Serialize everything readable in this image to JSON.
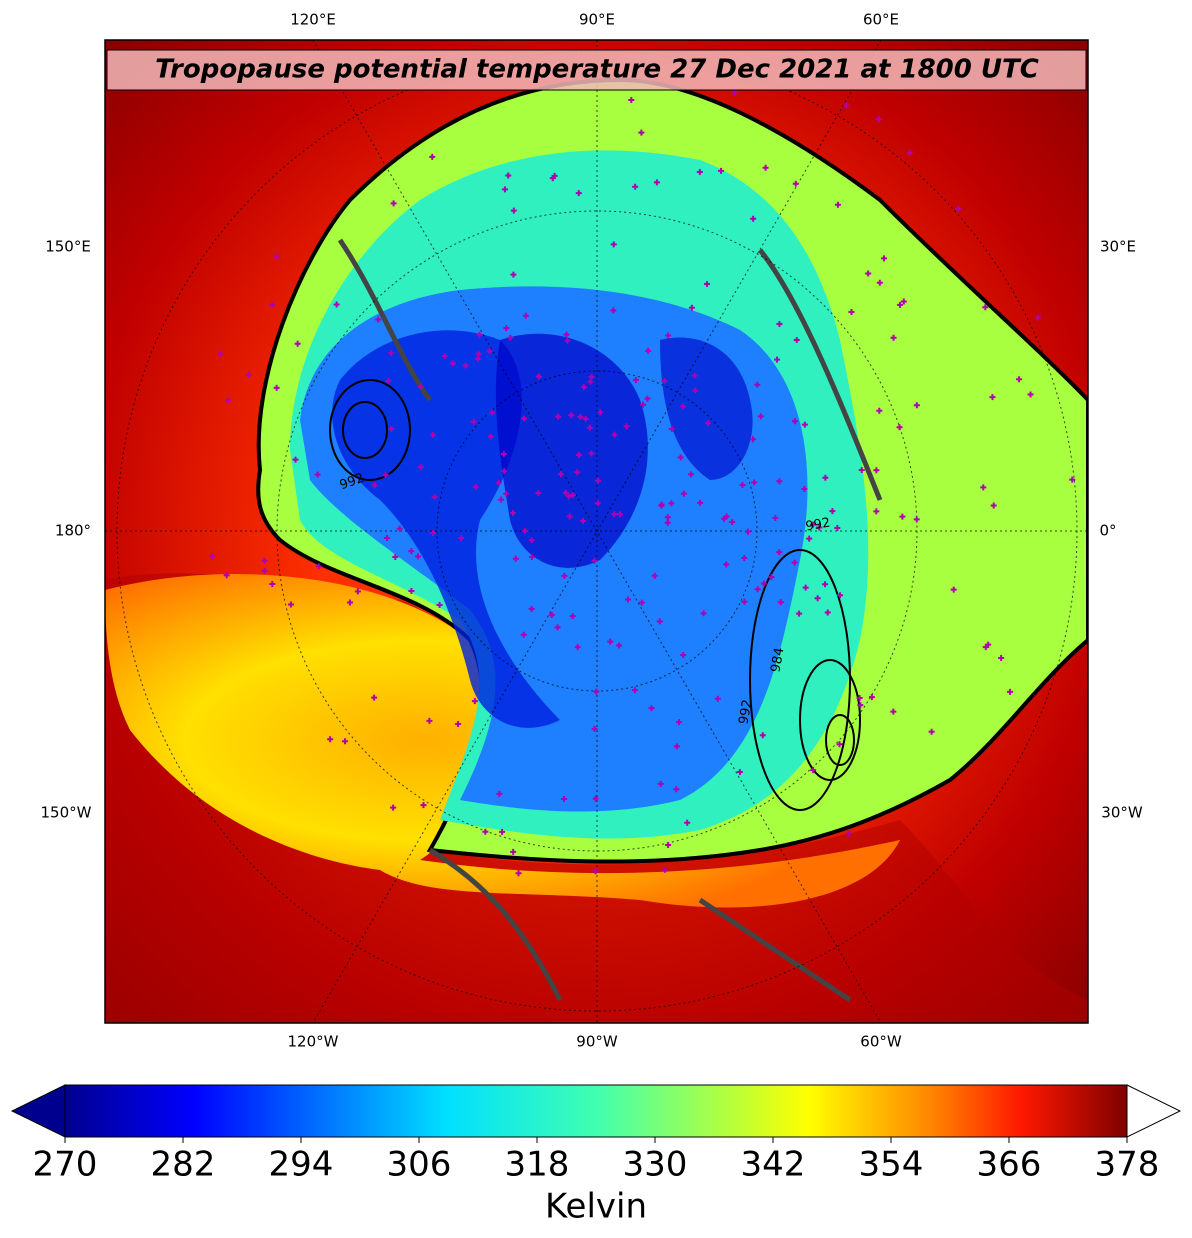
{
  "title": "Tropopause potential temperature 27 Dec 2021 at 1800 UTC",
  "map": {
    "lon_labels": {
      "top": [
        "120°E",
        "90°E",
        "60°E"
      ],
      "bottom": [
        "120°W",
        "90°W",
        "60°W"
      ],
      "left": [
        "150°E",
        "180°",
        "150°W"
      ],
      "right": [
        "30°E",
        "0°",
        "30°W"
      ]
    },
    "contour_labels": [
      "992",
      "984",
      "992",
      "992"
    ]
  },
  "colorbar": {
    "label": "Kelvin",
    "lim": [
      270,
      378
    ],
    "ticks": [
      270,
      282,
      294,
      306,
      318,
      330,
      342,
      354,
      366,
      378
    ]
  }
}
